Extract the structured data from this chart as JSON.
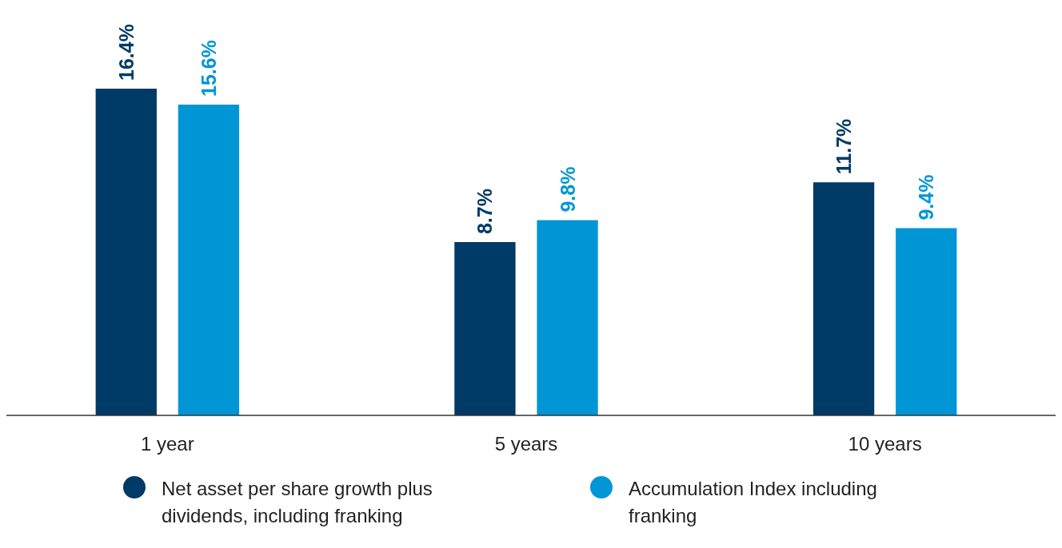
{
  "chart_data": {
    "type": "bar",
    "categories": [
      "1 year",
      "5 years",
      "10 years"
    ],
    "series": [
      {
        "name": "Net asset per share growth plus dividends, including franking",
        "color": "#003a66",
        "values": [
          16.4,
          8.7,
          11.7
        ],
        "value_labels": [
          "16.4%",
          "8.7%",
          "11.7%"
        ]
      },
      {
        "name": "Accumulation Index including franking",
        "color": "#0096d6",
        "values": [
          15.6,
          9.8,
          9.4
        ],
        "value_labels": [
          "15.6%",
          "9.8%",
          "9.4%"
        ]
      }
    ],
    "legend": "bottom"
  }
}
